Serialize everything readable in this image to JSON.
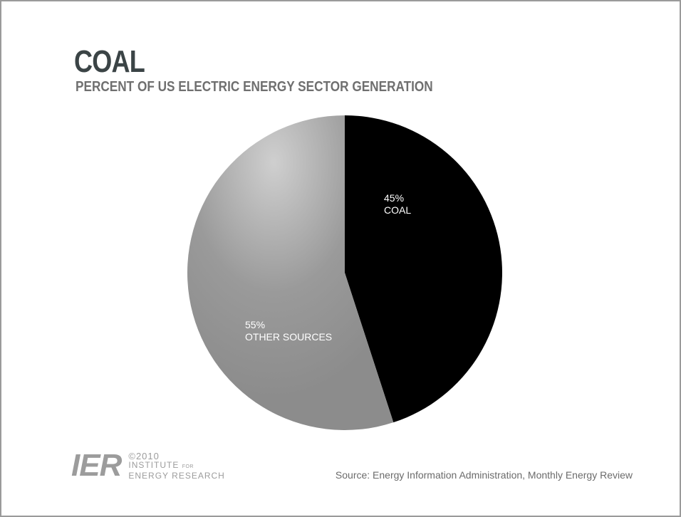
{
  "chart_data": {
    "type": "pie",
    "title": "COAL",
    "subtitle": "PERCENT OF US ELECTRIC ENERGY SECTOR GENERATION",
    "slices": [
      {
        "label": "COAL",
        "value": 45,
        "value_label": "45%",
        "color": "#000000"
      },
      {
        "label": "OTHER SOURCES",
        "value": 55,
        "value_label": "55%",
        "color": "#8f8f8f"
      }
    ]
  },
  "footer": {
    "copyright": "©2010",
    "org_line1": "INSTITUTE",
    "org_for": "FOR",
    "org_line2": "ENERGY RESEARCH",
    "logo_mark": "IER",
    "source": "Source: Energy Information Administration, Monthly Energy Review"
  },
  "colors": {
    "title": "#3b4446",
    "subtitle": "#6f6f6f",
    "coal_slice": "#000000",
    "other_slice": "#8f8f8f"
  }
}
